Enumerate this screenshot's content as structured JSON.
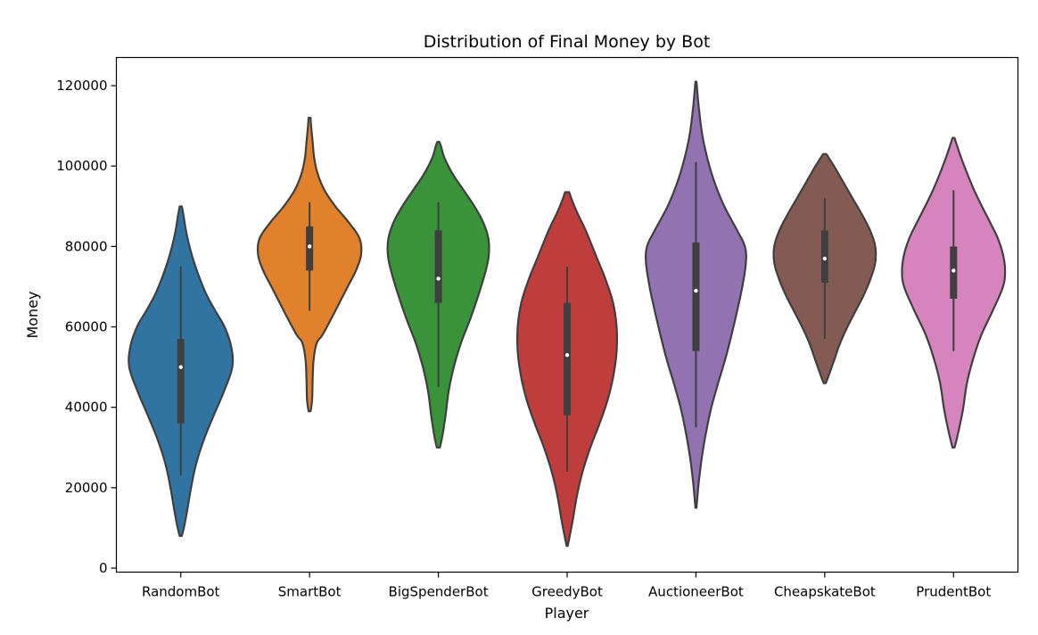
{
  "chart_data": {
    "type": "violin",
    "title": "Distribution of Final Money by Bot",
    "xlabel": "Player",
    "ylabel": "Money",
    "ylim": [
      -1000,
      127000
    ],
    "yticks": [
      "0",
      "20000",
      "40000",
      "60000",
      "80000",
      "100000",
      "120000"
    ],
    "ytick_values": [
      0,
      20000,
      40000,
      60000,
      80000,
      100000,
      120000
    ],
    "grid": false,
    "categories": [
      "RandomBot",
      "SmartBot",
      "BigSpenderBot",
      "GreedyBot",
      "AuctioneerBot",
      "CheapskateBot",
      "PrudentBot"
    ],
    "colors": [
      "#3274a1",
      "#e1812c",
      "#3a923a",
      "#c03d3e",
      "#9372b2",
      "#845b53",
      "#d684bd"
    ],
    "violins": [
      {
        "category": "RandomBot",
        "min": 8000,
        "max": 90000,
        "whisker_low": 23000,
        "q1": 36000,
        "median": 50000,
        "q3": 57000,
        "whisker_high": 75000,
        "profile": [
          [
            8000,
            0.02
          ],
          [
            10000,
            0.06
          ],
          [
            14000,
            0.12
          ],
          [
            20000,
            0.2
          ],
          [
            26000,
            0.3
          ],
          [
            32000,
            0.45
          ],
          [
            38000,
            0.64
          ],
          [
            44000,
            0.84
          ],
          [
            50000,
            1.0
          ],
          [
            55000,
            0.98
          ],
          [
            60000,
            0.85
          ],
          [
            64000,
            0.67
          ],
          [
            68000,
            0.5
          ],
          [
            72000,
            0.37
          ],
          [
            76000,
            0.26
          ],
          [
            80000,
            0.17
          ],
          [
            84000,
            0.1
          ],
          [
            88000,
            0.05
          ],
          [
            90000,
            0.02
          ]
        ]
      },
      {
        "category": "SmartBot",
        "min": 39000,
        "max": 112000,
        "whisker_low": 64000,
        "q1": 74000,
        "median": 80000,
        "q3": 85000,
        "whisker_high": 91000,
        "profile": [
          [
            39000,
            0.02
          ],
          [
            42000,
            0.05
          ],
          [
            47000,
            0.06
          ],
          [
            52000,
            0.08
          ],
          [
            56000,
            0.14
          ],
          [
            58000,
            0.25
          ],
          [
            62000,
            0.42
          ],
          [
            66000,
            0.58
          ],
          [
            70000,
            0.74
          ],
          [
            74000,
            0.9
          ],
          [
            78000,
            1.0
          ],
          [
            82000,
            0.97
          ],
          [
            86000,
            0.76
          ],
          [
            90000,
            0.5
          ],
          [
            94000,
            0.29
          ],
          [
            98000,
            0.16
          ],
          [
            102000,
            0.09
          ],
          [
            106000,
            0.06
          ],
          [
            110000,
            0.03
          ],
          [
            112000,
            0.02
          ]
        ]
      },
      {
        "category": "BigSpenderBot",
        "min": 30000,
        "max": 106000,
        "whisker_low": 45000,
        "q1": 66000,
        "median": 72000,
        "q3": 84000,
        "whisker_high": 91000,
        "profile": [
          [
            30000,
            0.03
          ],
          [
            33000,
            0.08
          ],
          [
            38000,
            0.14
          ],
          [
            44000,
            0.2
          ],
          [
            50000,
            0.3
          ],
          [
            56000,
            0.44
          ],
          [
            62000,
            0.62
          ],
          [
            68000,
            0.78
          ],
          [
            74000,
            0.92
          ],
          [
            78000,
            0.98
          ],
          [
            82000,
            0.97
          ],
          [
            86000,
            0.87
          ],
          [
            90000,
            0.7
          ],
          [
            94000,
            0.49
          ],
          [
            98000,
            0.28
          ],
          [
            102000,
            0.12
          ],
          [
            105000,
            0.05
          ],
          [
            106000,
            0.02
          ]
        ]
      },
      {
        "category": "GreedyBot",
        "min": 5500,
        "max": 93500,
        "whisker_low": 24000,
        "q1": 38000,
        "median": 53000,
        "q3": 66000,
        "whisker_high": 75000,
        "profile": [
          [
            5500,
            0.01
          ],
          [
            8000,
            0.05
          ],
          [
            12000,
            0.11
          ],
          [
            18000,
            0.19
          ],
          [
            24000,
            0.3
          ],
          [
            30000,
            0.45
          ],
          [
            36000,
            0.63
          ],
          [
            42000,
            0.79
          ],
          [
            48000,
            0.9
          ],
          [
            54000,
            0.96
          ],
          [
            60000,
            0.96
          ],
          [
            66000,
            0.89
          ],
          [
            72000,
            0.74
          ],
          [
            78000,
            0.55
          ],
          [
            84000,
            0.36
          ],
          [
            88000,
            0.21
          ],
          [
            91000,
            0.11
          ],
          [
            93500,
            0.04
          ]
        ]
      },
      {
        "category": "AuctioneerBot",
        "min": 15000,
        "max": 121000,
        "whisker_low": 35000,
        "q1": 54000,
        "median": 69000,
        "q3": 81000,
        "whisker_high": 101000,
        "profile": [
          [
            15000,
            0.01
          ],
          [
            18000,
            0.03
          ],
          [
            22000,
            0.06
          ],
          [
            28000,
            0.12
          ],
          [
            34000,
            0.2
          ],
          [
            40000,
            0.3
          ],
          [
            46000,
            0.43
          ],
          [
            52000,
            0.57
          ],
          [
            58000,
            0.69
          ],
          [
            64000,
            0.8
          ],
          [
            70000,
            0.9
          ],
          [
            76000,
            0.97
          ],
          [
            80000,
            0.95
          ],
          [
            84000,
            0.8
          ],
          [
            90000,
            0.55
          ],
          [
            96000,
            0.36
          ],
          [
            102000,
            0.22
          ],
          [
            108000,
            0.12
          ],
          [
            114000,
            0.06
          ],
          [
            118000,
            0.03
          ],
          [
            121000,
            0.01
          ]
        ]
      },
      {
        "category": "CheapskateBot",
        "min": 46000,
        "max": 103000,
        "whisker_low": 57000,
        "q1": 71000,
        "median": 77000,
        "q3": 84000,
        "whisker_high": 92000,
        "profile": [
          [
            46000,
            0.02
          ],
          [
            48000,
            0.08
          ],
          [
            52000,
            0.19
          ],
          [
            56000,
            0.3
          ],
          [
            60000,
            0.44
          ],
          [
            64000,
            0.6
          ],
          [
            68000,
            0.76
          ],
          [
            72000,
            0.89
          ],
          [
            76000,
            0.98
          ],
          [
            80000,
            0.98
          ],
          [
            84000,
            0.88
          ],
          [
            88000,
            0.72
          ],
          [
            92000,
            0.54
          ],
          [
            96000,
            0.36
          ],
          [
            100000,
            0.18
          ],
          [
            103000,
            0.03
          ]
        ]
      },
      {
        "category": "PrudentBot",
        "min": 30000,
        "max": 107000,
        "whisker_low": 54000,
        "q1": 67000,
        "median": 74000,
        "q3": 80000,
        "whisker_high": 94000,
        "profile": [
          [
            30000,
            0.02
          ],
          [
            32000,
            0.06
          ],
          [
            36000,
            0.13
          ],
          [
            40000,
            0.19
          ],
          [
            46000,
            0.26
          ],
          [
            52000,
            0.38
          ],
          [
            58000,
            0.54
          ],
          [
            64000,
            0.76
          ],
          [
            70000,
            0.96
          ],
          [
            74000,
            1.0
          ],
          [
            78000,
            0.96
          ],
          [
            82000,
            0.86
          ],
          [
            86000,
            0.71
          ],
          [
            90000,
            0.55
          ],
          [
            94000,
            0.4
          ],
          [
            98000,
            0.27
          ],
          [
            102000,
            0.15
          ],
          [
            105000,
            0.07
          ],
          [
            107000,
            0.02
          ]
        ]
      }
    ]
  }
}
